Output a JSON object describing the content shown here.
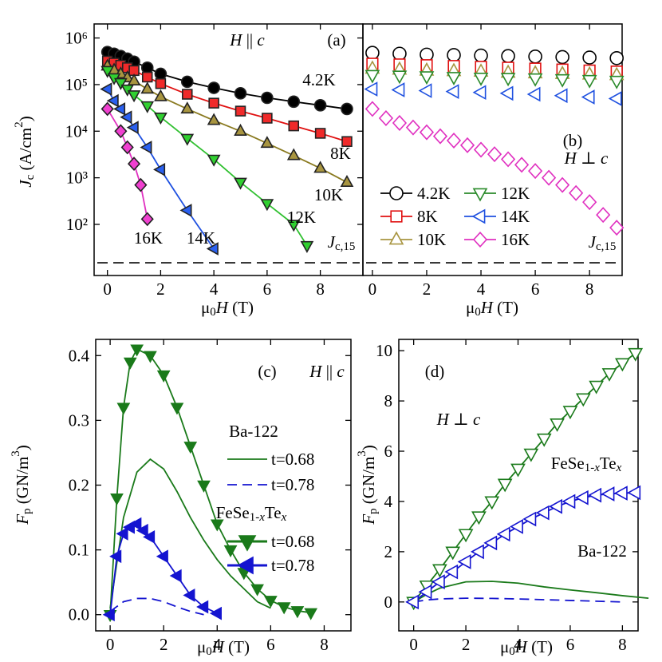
{
  "chart_data": [
    {
      "type": "line",
      "y_scale": "log",
      "xlim": [
        -0.5,
        9.6
      ],
      "ylim": [
        8,
        2000000
      ],
      "xticks": [
        0,
        2,
        4,
        6,
        8
      ],
      "yticks": [
        {
          "value": 100,
          "label": "10²"
        },
        {
          "value": 1000,
          "label": "10³"
        },
        {
          "value": 10000,
          "label": "10⁴"
        },
        {
          "value": 100000,
          "label": "10⁵"
        },
        {
          "value": 1000000,
          "label": "10⁶"
        }
      ],
      "x_label": [
        "μ",
        {
          "sub": "0"
        },
        {
          "i": "H"
        },
        " (T)"
      ],
      "y_label": [
        {
          "i": "J"
        },
        {
          "sub": "c"
        },
        " (A/cm",
        {
          "sup": "2"
        },
        ")"
      ],
      "hline": 15,
      "annotations": [
        [
          {
            "i": "H"
          },
          " || ",
          {
            "i": "c"
          }
        ],
        "(a)",
        [
          {
            "i": "J"
          },
          {
            "sub": "c,15"
          }
        ]
      ],
      "series": [
        {
          "name": "4.2K",
          "color": "#000000",
          "fill": "#000000",
          "marker": "circle",
          "x": [
            0,
            0.25,
            0.5,
            0.75,
            1,
            1.5,
            2,
            3,
            4,
            5,
            6,
            7,
            8,
            9
          ],
          "values": [
            500000,
            460000,
            410000,
            360000,
            310000,
            230000,
            170000,
            115000,
            85000,
            65000,
            52000,
            43000,
            36000,
            30000
          ]
        },
        {
          "name": "8K",
          "color": "#e01010",
          "fill": "#f02a2a",
          "marker": "square",
          "x": [
            0,
            0.25,
            0.5,
            0.75,
            1,
            1.5,
            2,
            3,
            4,
            5,
            6,
            7,
            8,
            9
          ],
          "values": [
            320000,
            290000,
            260000,
            230000,
            200000,
            145000,
            105000,
            62000,
            40000,
            27000,
            19000,
            13000,
            9000,
            6000
          ]
        },
        {
          "name": "10K",
          "color": "#8a7a20",
          "fill": "#a89540",
          "marker": "triangle-up",
          "x": [
            0,
            0.25,
            0.5,
            0.75,
            1,
            1.5,
            2,
            3,
            4,
            5,
            6,
            7,
            8,
            9
          ],
          "values": [
            250000,
            205000,
            170000,
            140000,
            120000,
            80000,
            55000,
            30000,
            17000,
            10000,
            5500,
            3000,
            1600,
            800
          ]
        },
        {
          "name": "12K",
          "color": "#30c030",
          "fill": "#30d030",
          "marker": "triangle-down",
          "x": [
            0,
            0.25,
            0.5,
            0.75,
            1,
            1.5,
            2,
            3,
            4,
            5,
            6,
            7,
            7.5
          ],
          "values": [
            200000,
            140000,
            110000,
            80000,
            60000,
            35000,
            20000,
            7000,
            2500,
            800,
            280,
            100,
            35
          ]
        },
        {
          "name": "14K",
          "color": "#1e50e0",
          "fill": "#2a60f0",
          "marker": "triangle-left",
          "x": [
            0,
            0.25,
            0.5,
            0.75,
            1,
            1.5,
            2,
            3,
            4
          ],
          "values": [
            80000,
            45000,
            30000,
            20000,
            12000,
            4500,
            1500,
            200,
            30
          ]
        },
        {
          "name": "16K",
          "color": "#e030c0",
          "fill": "#f040d0",
          "marker": "diamond",
          "x": [
            0,
            0.5,
            0.75,
            1,
            1.25,
            1.5
          ],
          "values": [
            30000,
            10000,
            4500,
            2000,
            700,
            130
          ]
        }
      ]
    },
    {
      "type": "line",
      "y_scale": "log",
      "xlim": [
        -0.35,
        9.2
      ],
      "ylim": [
        8,
        2000000
      ],
      "xticks": [
        0,
        2,
        4,
        6,
        8
      ],
      "x_label": [
        "μ",
        {
          "sub": "0"
        },
        {
          "i": "H"
        },
        " (T)"
      ],
      "hline": 15,
      "annotations": [
        "(b)",
        [
          {
            "i": "H"
          },
          " ⊥ ",
          {
            "i": "c"
          }
        ],
        [
          {
            "i": "J"
          },
          {
            "sub": "c,15"
          }
        ]
      ],
      "series": [
        {
          "name": "4.2K",
          "color": "#000000",
          "marker": "circle",
          "x": [
            0,
            1,
            2,
            3,
            4,
            5,
            6,
            7,
            8,
            9
          ],
          "values": [
            480000,
            460000,
            440000,
            430000,
            420000,
            410000,
            400000,
            390000,
            380000,
            370000
          ]
        },
        {
          "name": "8K",
          "color": "#e01010",
          "marker": "square",
          "x": [
            0,
            1,
            2,
            3,
            4,
            5,
            6,
            7,
            8,
            9
          ],
          "values": [
            280000,
            270000,
            260000,
            250000,
            240000,
            230000,
            220000,
            210000,
            200000,
            190000
          ]
        },
        {
          "name": "10K",
          "color": "#a89540",
          "marker": "triangle-up",
          "x": [
            0,
            1,
            2,
            3,
            4,
            5,
            6,
            7,
            8,
            9
          ],
          "values": [
            220000,
            210000,
            200000,
            195000,
            190000,
            180000,
            175000,
            170000,
            165000,
            160000
          ]
        },
        {
          "name": "12K",
          "color": "#2a8a2a",
          "marker": "triangle-down",
          "x": [
            0,
            1,
            2,
            3,
            4,
            5,
            6,
            7,
            8,
            9
          ],
          "values": [
            160000,
            155000,
            150000,
            145000,
            140000,
            138000,
            135000,
            130000,
            125000,
            120000
          ]
        },
        {
          "name": "14K",
          "color": "#1e50e0",
          "marker": "triangle-left",
          "x": [
            0,
            1,
            2,
            3,
            4,
            5,
            6,
            7,
            8,
            9
          ],
          "values": [
            80000,
            77000,
            74000,
            71000,
            68000,
            65000,
            62000,
            58000,
            54000,
            50000
          ]
        },
        {
          "name": "16K",
          "color": "#e030c0",
          "marker": "diamond",
          "x": [
            0,
            0.5,
            1,
            1.5,
            2,
            2.5,
            3,
            3.5,
            4,
            4.5,
            5,
            5.5,
            6,
            6.5,
            7,
            7.5,
            8,
            8.5,
            9
          ],
          "values": [
            30000,
            19000,
            15000,
            12000,
            9500,
            7800,
            6300,
            5000,
            4000,
            3200,
            2500,
            1900,
            1400,
            1000,
            700,
            470,
            300,
            160,
            85
          ]
        }
      ]
    },
    {
      "type": "line",
      "xlim": [
        -0.54,
        9.0
      ],
      "ylim": [
        -0.025,
        0.425
      ],
      "xticks": [
        0,
        2,
        4,
        6,
        8
      ],
      "yticks": [
        {
          "value": 0,
          "label": "0.0"
        },
        0.1,
        0.2,
        0.3,
        0.4
      ],
      "x_label": [
        "μ",
        {
          "sub": "0"
        },
        {
          "i": "H"
        },
        " (T)"
      ],
      "y_label": [
        {
          "i": "F"
        },
        {
          "sub": "p"
        },
        " (GN/m",
        {
          "sup": "3"
        },
        ")"
      ],
      "annotations": [
        "(c)",
        [
          {
            "i": "H"
          },
          " || ",
          {
            "i": "c"
          }
        ],
        "Ba-122",
        [
          "FeSe",
          {
            "sub": "1-"
          },
          {
            "isub": "x"
          },
          "Te",
          {
            "isub": "x"
          }
        ]
      ],
      "series": [
        {
          "name": "t=0.68",
          "color": "#1a7a1a",
          "x": [
            0,
            0.25,
            0.5,
            1,
            1.5,
            2,
            2.5,
            3,
            3.5,
            4,
            4.5,
            5,
            5.5,
            6
          ],
          "values": [
            0.01,
            0.08,
            0.15,
            0.22,
            0.24,
            0.225,
            0.19,
            0.15,
            0.115,
            0.085,
            0.06,
            0.04,
            0.02,
            0.01
          ]
        },
        {
          "name": "t=0.78",
          "color": "#1414d0",
          "dash": true,
          "x": [
            0,
            0.5,
            1,
            1.5,
            2,
            2.5,
            3,
            3.5
          ],
          "values": [
            0.005,
            0.02,
            0.025,
            0.025,
            0.02,
            0.012,
            0.005,
            0
          ]
        },
        {
          "name": "t=0.68",
          "color": "#1a7a1a",
          "fill": "#1a7a1a",
          "marker": "triangle-down",
          "x": [
            0,
            0.25,
            0.5,
            0.75,
            1,
            1.5,
            2,
            2.5,
            3,
            3.5,
            4,
            4.5,
            5,
            5.5,
            6,
            6.5,
            7,
            7.5
          ],
          "values": [
            0,
            0.18,
            0.32,
            0.39,
            0.41,
            0.4,
            0.37,
            0.32,
            0.26,
            0.2,
            0.14,
            0.1,
            0.065,
            0.04,
            0.022,
            0.012,
            0.006,
            0.003
          ]
        },
        {
          "name": "t=0.78",
          "color": "#1414d0",
          "fill": "#1414d0",
          "marker": "triangle-left",
          "x": [
            0,
            0.25,
            0.5,
            0.75,
            1,
            1.25,
            1.5,
            2,
            2.5,
            3,
            3.5,
            4
          ],
          "values": [
            0,
            0.09,
            0.125,
            0.135,
            0.14,
            0.13,
            0.12,
            0.09,
            0.06,
            0.03,
            0.012,
            0.002
          ]
        }
      ]
    },
    {
      "type": "line",
      "xlim": [
        -0.57,
        8.6
      ],
      "ylim": [
        -1.15,
        10.45
      ],
      "xticks": [
        0,
        2,
        4,
        6,
        8
      ],
      "yticks": [
        0,
        2,
        4,
        6,
        8,
        10
      ],
      "x_label": [
        "μ",
        {
          "sub": "0"
        },
        {
          "i": "H"
        },
        " (T)"
      ],
      "y_label": [
        {
          "i": "F"
        },
        {
          "sub": "p"
        },
        " (GN/m",
        {
          "sup": "3"
        },
        ")"
      ],
      "annotations": [
        "(d)",
        [
          {
            "i": "H"
          },
          " ⊥ ",
          {
            "i": "c"
          }
        ],
        [
          "FeSe",
          {
            "sub": "1-"
          },
          {
            "isub": "x"
          },
          "Te",
          {
            "isub": "x"
          }
        ],
        "Ba-122"
      ],
      "series": [
        {
          "name": "t=0.68",
          "color": "#1a7a1a",
          "x": [
            0,
            0.5,
            1,
            2,
            3,
            4,
            5,
            6,
            7,
            8,
            9
          ],
          "values": [
            0,
            0.3,
            0.55,
            0.8,
            0.82,
            0.75,
            0.6,
            0.48,
            0.37,
            0.25,
            0.15
          ]
        },
        {
          "name": "t=0.78",
          "color": "#1414d0",
          "dash": true,
          "x": [
            0,
            0.5,
            1,
            2,
            3,
            4,
            5,
            6,
            7,
            8
          ],
          "values": [
            0,
            0.08,
            0.12,
            0.15,
            0.14,
            0.12,
            0.09,
            0.06,
            0.03,
            0
          ]
        },
        {
          "name": "t=0.68",
          "color": "#1a7a1a",
          "marker": "triangle-down",
          "x": [
            0,
            0.5,
            1,
            1.5,
            2,
            2.5,
            3,
            3.5,
            4,
            4.5,
            5,
            5.5,
            6,
            6.5,
            7,
            7.5,
            8,
            8.5
          ],
          "values": [
            0,
            0.65,
            1.3,
            2,
            2.7,
            3.4,
            4,
            4.7,
            5.3,
            5.9,
            6.5,
            7.1,
            7.6,
            8.1,
            8.6,
            9.1,
            9.5,
            9.9
          ]
        },
        {
          "name": "t=0.78",
          "color": "#1414d0",
          "marker": "triangle-left",
          "x": [
            0,
            0.5,
            1,
            1.5,
            2,
            2.5,
            3,
            3.5,
            4,
            4.5,
            5,
            5.5,
            6,
            6.5,
            7,
            7.5,
            8,
            8.5
          ],
          "values": [
            0,
            0.4,
            0.8,
            1.2,
            1.6,
            2,
            2.35,
            2.7,
            3,
            3.3,
            3.55,
            3.8,
            4,
            4.15,
            4.25,
            4.3,
            4.33,
            4.35
          ]
        }
      ]
    }
  ]
}
